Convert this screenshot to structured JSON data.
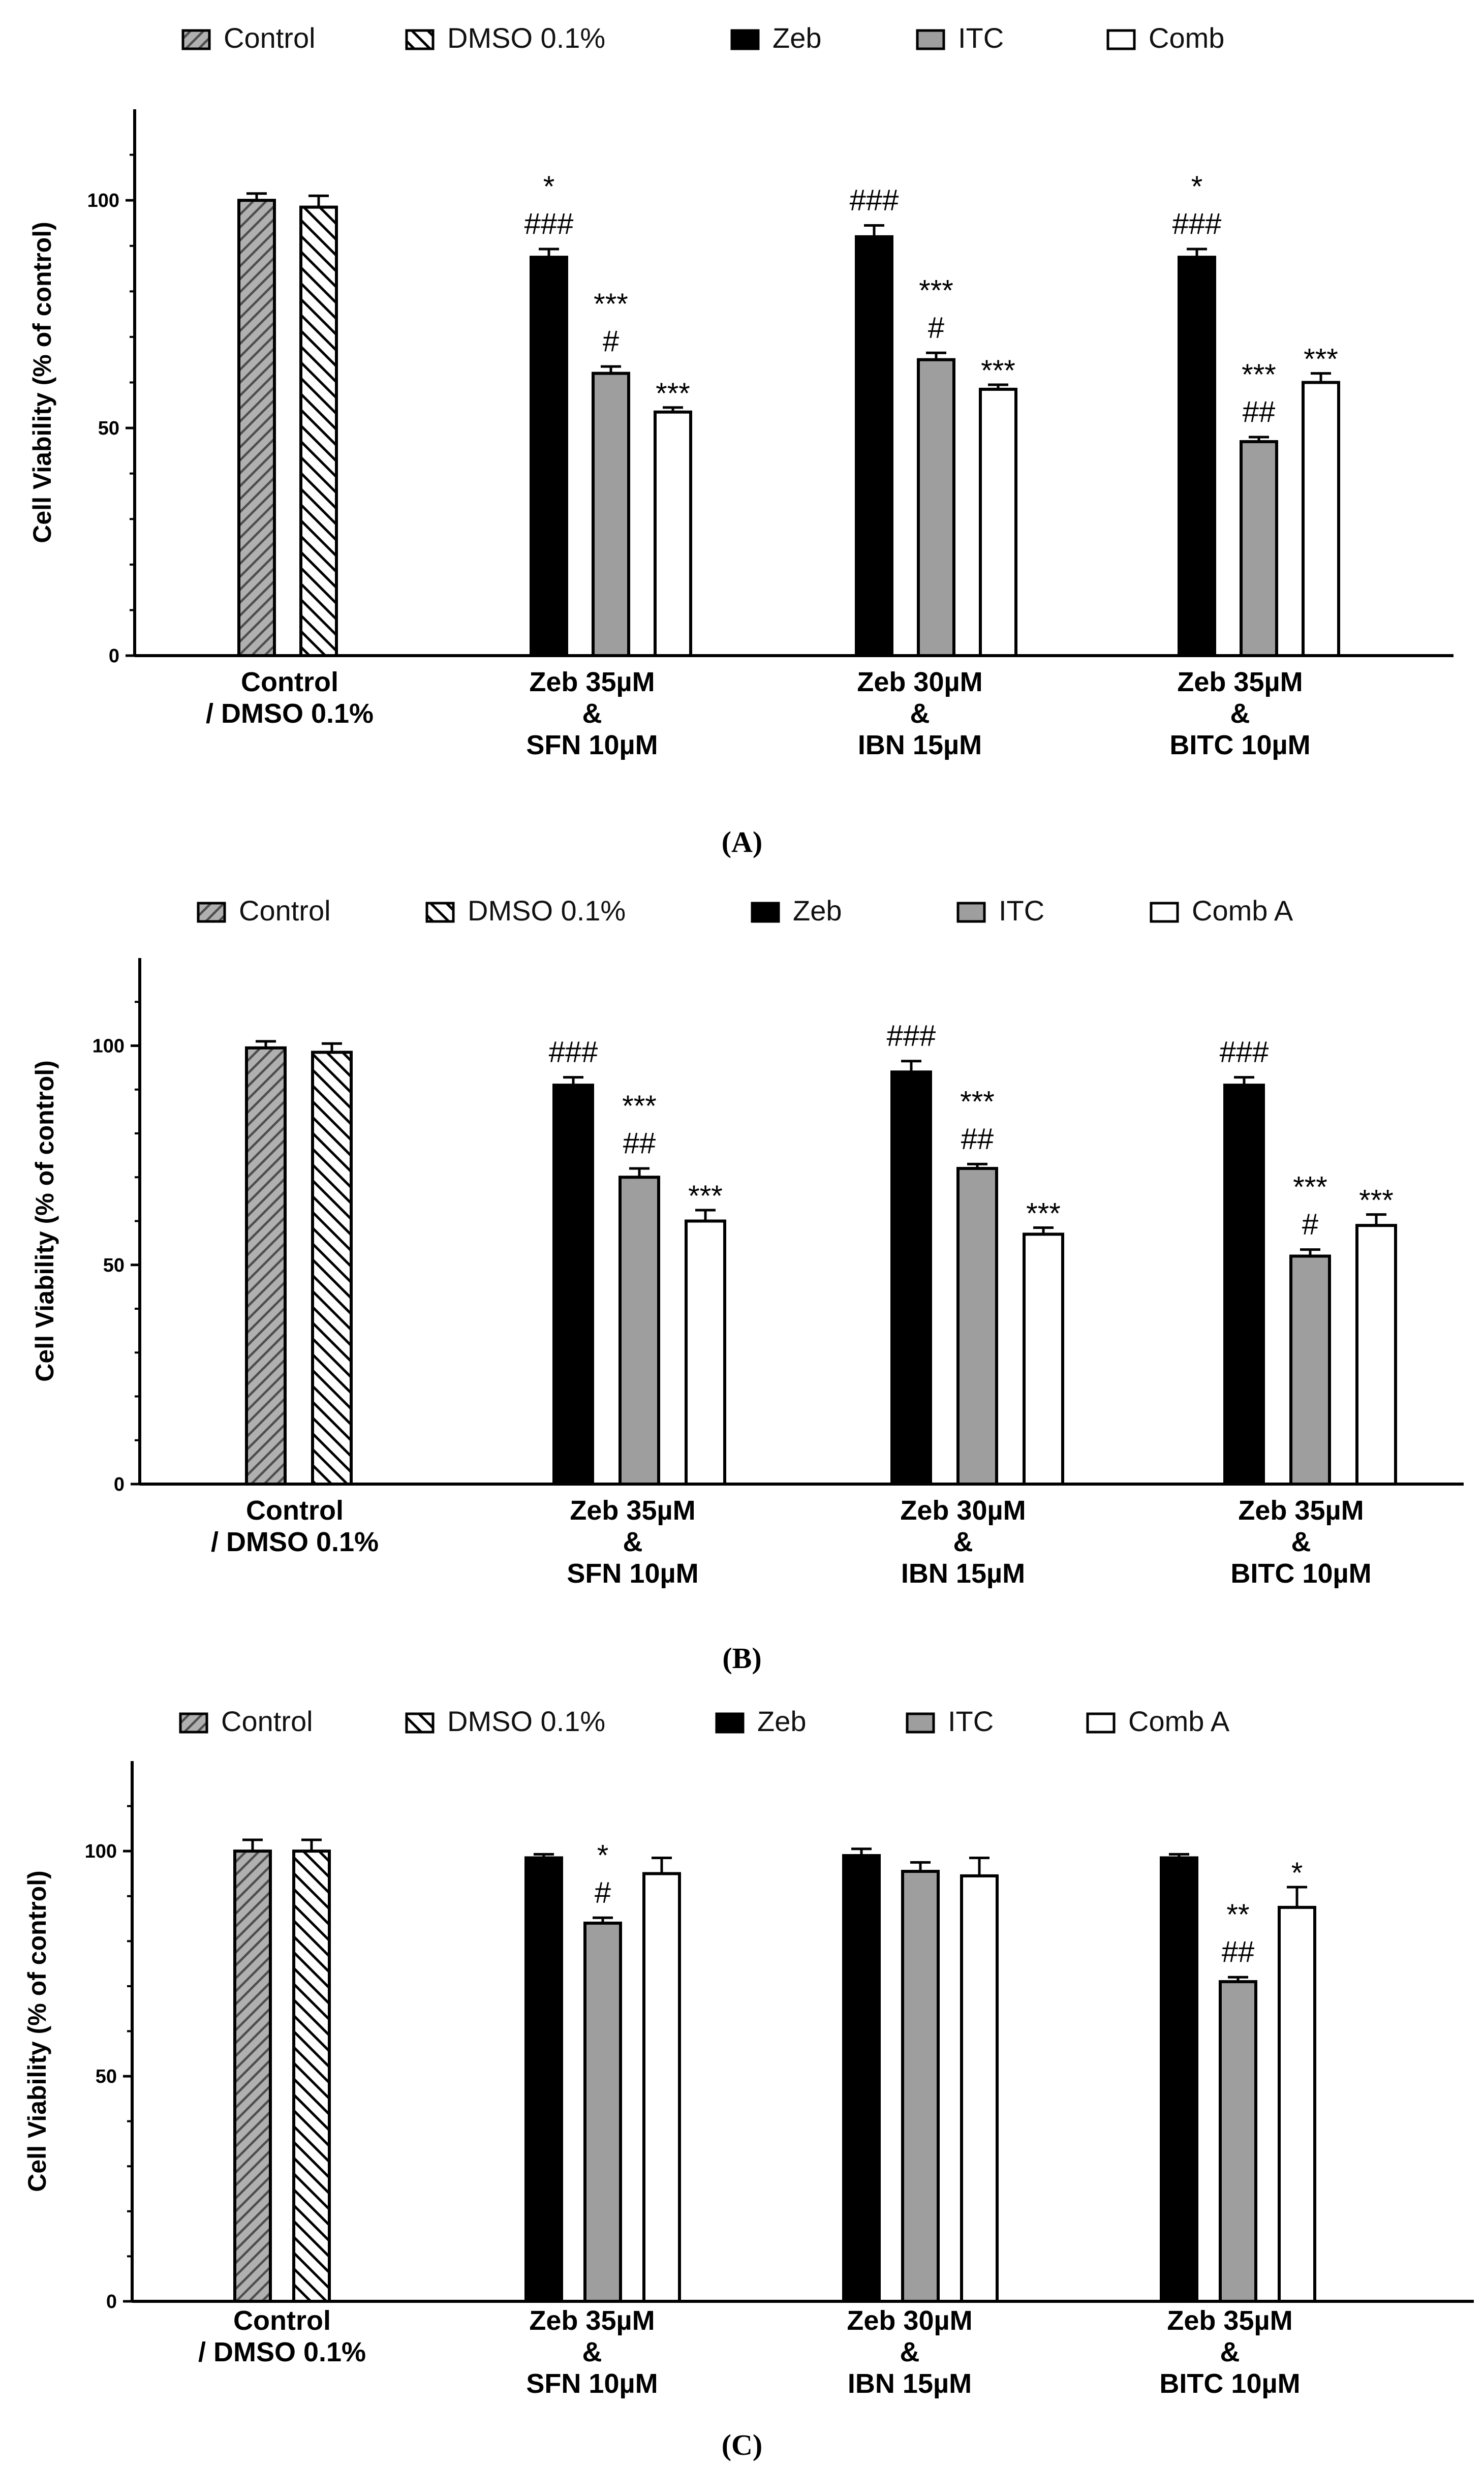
{
  "figure": {
    "panels": [
      {
        "id": "A",
        "caption": "(A)"
      },
      {
        "id": "B",
        "caption": "(B)"
      },
      {
        "id": "C",
        "caption": "(C)"
      }
    ]
  },
  "colors": {
    "zeb": "#000000",
    "itc": "#9e9e9e",
    "comb": "#ffffff",
    "control_hatch": "#8a8a8a",
    "axis": "#000000"
  },
  "chart_data": [
    {
      "type": "bar",
      "panel": "(A)",
      "ylabel": "Cell Viability (% of control)",
      "ylim": [
        0,
        120
      ],
      "yticks": [
        0,
        50,
        100
      ],
      "legend": [
        "Control",
        "DMSO 0.1%",
        "Zeb",
        "ITC",
        "Comb"
      ],
      "groups": [
        {
          "label": [
            "Control",
            "/ DMSO 0.1%"
          ],
          "bars": [
            {
              "series": "Control",
              "value": 100,
              "err": 1.5,
              "ann": []
            },
            {
              "series": "DMSO 0.1%",
              "value": 98.5,
              "err": 2.5,
              "ann": []
            }
          ]
        },
        {
          "label": [
            "Zeb 35µM",
            "&",
            "SFN 10µM"
          ],
          "bars": [
            {
              "series": "Zeb",
              "value": 87.5,
              "err": 1.8,
              "ann": [
                "*",
                "###"
              ]
            },
            {
              "series": "ITC",
              "value": 62,
              "err": 1.5,
              "ann": [
                "***",
                "#"
              ]
            },
            {
              "series": "Comb",
              "value": 53.5,
              "err": 1.0,
              "ann": [
                "***"
              ]
            }
          ]
        },
        {
          "label": [
            "Zeb 30µM",
            "&",
            "IBN 15µM"
          ],
          "bars": [
            {
              "series": "Zeb",
              "value": 92,
              "err": 2.5,
              "ann": [
                "###"
              ]
            },
            {
              "series": "ITC",
              "value": 65,
              "err": 1.5,
              "ann": [
                "***",
                "#"
              ]
            },
            {
              "series": "Comb",
              "value": 58.5,
              "err": 1.0,
              "ann": [
                "***"
              ]
            }
          ]
        },
        {
          "label": [
            "Zeb 35µM",
            "&",
            "BITC 10µM"
          ],
          "bars": [
            {
              "series": "Zeb",
              "value": 87.5,
              "err": 1.8,
              "ann": [
                "*",
                "###"
              ]
            },
            {
              "series": "ITC",
              "value": 47,
              "err": 1.0,
              "ann": [
                "***",
                "##"
              ]
            },
            {
              "series": "Comb",
              "value": 60,
              "err": 2.0,
              "ann": [
                "***"
              ]
            }
          ]
        }
      ]
    },
    {
      "type": "bar",
      "panel": "(B)",
      "ylabel": "Cell Viability (% of control)",
      "ylim": [
        0,
        120
      ],
      "yticks": [
        0,
        50,
        100
      ],
      "legend": [
        "Control",
        "DMSO 0.1%",
        "Zeb",
        "ITC",
        "Comb A"
      ],
      "groups": [
        {
          "label": [
            "Control",
            "/ DMSO 0.1%"
          ],
          "bars": [
            {
              "series": "Control",
              "value": 99.5,
              "err": 1.5,
              "ann": []
            },
            {
              "series": "DMSO 0.1%",
              "value": 98.5,
              "err": 2.0,
              "ann": []
            }
          ]
        },
        {
          "label": [
            "Zeb 35µM",
            "&",
            "SFN 10µM"
          ],
          "bars": [
            {
              "series": "Zeb",
              "value": 91,
              "err": 1.8,
              "ann": [
                "###"
              ]
            },
            {
              "series": "ITC",
              "value": 70,
              "err": 2.0,
              "ann": [
                "***",
                "##"
              ]
            },
            {
              "series": "Comb",
              "value": 60,
              "err": 2.5,
              "ann": [
                "***"
              ]
            }
          ]
        },
        {
          "label": [
            "Zeb 30µM",
            "&",
            "IBN 15µM"
          ],
          "bars": [
            {
              "series": "Zeb",
              "value": 94,
              "err": 2.5,
              "ann": [
                "###"
              ]
            },
            {
              "series": "ITC",
              "value": 72,
              "err": 1.0,
              "ann": [
                "***",
                "##"
              ]
            },
            {
              "series": "Comb",
              "value": 57,
              "err": 1.5,
              "ann": [
                "***"
              ]
            }
          ]
        },
        {
          "label": [
            "Zeb 35µM",
            "&",
            "BITC 10µM"
          ],
          "bars": [
            {
              "series": "Zeb",
              "value": 91,
              "err": 1.8,
              "ann": [
                "###"
              ]
            },
            {
              "series": "ITC",
              "value": 52,
              "err": 1.5,
              "ann": [
                "***",
                "#"
              ]
            },
            {
              "series": "Comb",
              "value": 59,
              "err": 2.5,
              "ann": [
                "***"
              ]
            }
          ]
        }
      ]
    },
    {
      "type": "bar",
      "panel": "(C)",
      "ylabel": "Cell Viability (% of control)",
      "ylim": [
        0,
        120
      ],
      "yticks": [
        0,
        50,
        100
      ],
      "legend": [
        "Control",
        "DMSO 0.1%",
        "Zeb",
        "ITC",
        "Comb A"
      ],
      "groups": [
        {
          "label": [
            "Control",
            "/ DMSO 0.1%"
          ],
          "bars": [
            {
              "series": "Control",
              "value": 100,
              "err": 2.5,
              "ann": []
            },
            {
              "series": "DMSO 0.1%",
              "value": 100,
              "err": 2.5,
              "ann": []
            }
          ]
        },
        {
          "label": [
            "Zeb 35µM",
            "&",
            "SFN 10µM"
          ],
          "bars": [
            {
              "series": "Zeb",
              "value": 98.5,
              "err": 0.8,
              "ann": []
            },
            {
              "series": "ITC",
              "value": 84,
              "err": 1.2,
              "ann": [
                "*",
                "#"
              ]
            },
            {
              "series": "Comb",
              "value": 95,
              "err": 3.5,
              "ann": []
            }
          ]
        },
        {
          "label": [
            "Zeb 30µM",
            "&",
            "IBN 15µM"
          ],
          "bars": [
            {
              "series": "Zeb",
              "value": 99,
              "err": 1.5,
              "ann": []
            },
            {
              "series": "ITC",
              "value": 95.5,
              "err": 2.0,
              "ann": []
            },
            {
              "series": "Comb",
              "value": 94.5,
              "err": 4.0,
              "ann": []
            }
          ]
        },
        {
          "label": [
            "Zeb 35µM",
            "&",
            "BITC 10µM"
          ],
          "bars": [
            {
              "series": "Zeb",
              "value": 98.5,
              "err": 0.8,
              "ann": []
            },
            {
              "series": "ITC",
              "value": 71,
              "err": 1.0,
              "ann": [
                "**",
                "##"
              ]
            },
            {
              "series": "Comb",
              "value": 87.5,
              "err": 4.5,
              "ann": [
                "*"
              ]
            }
          ]
        }
      ]
    }
  ]
}
